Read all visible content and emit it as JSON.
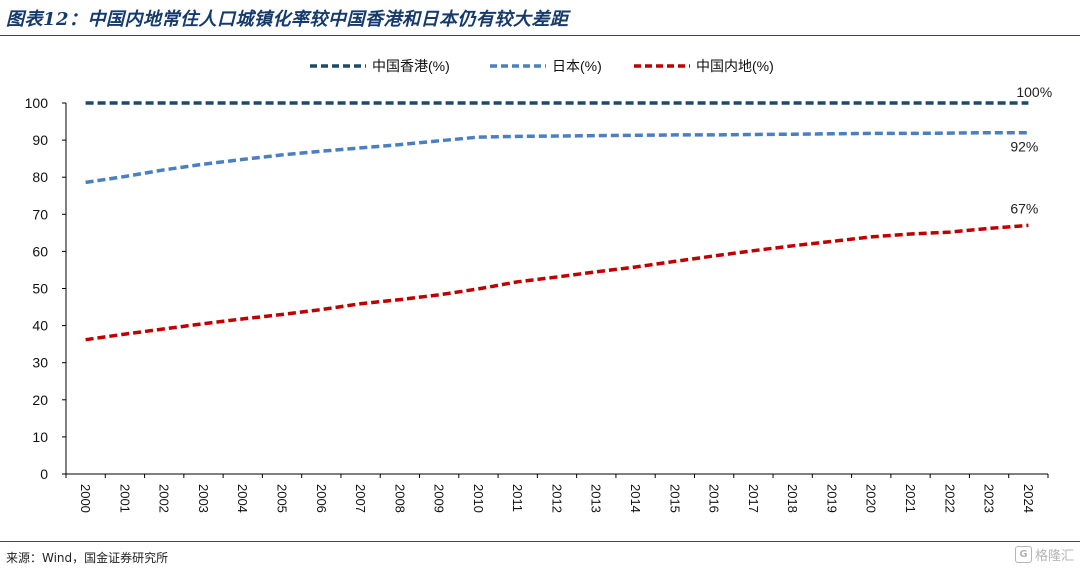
{
  "header": {
    "title": "图表12：中国内地常住人口城镇化率较中国香港和日本仍有较大差距"
  },
  "footer": {
    "source": "来源：Wind，国金证券研究所"
  },
  "watermark": {
    "logo": "G",
    "text": "格隆汇"
  },
  "chart_data": {
    "type": "line",
    "x": [
      2000,
      2001,
      2002,
      2003,
      2004,
      2005,
      2006,
      2007,
      2008,
      2009,
      2010,
      2011,
      2012,
      2013,
      2014,
      2015,
      2016,
      2017,
      2018,
      2019,
      2020,
      2021,
      2022,
      2023,
      2024
    ],
    "xticks": [
      "2000",
      "2001",
      "2002",
      "2003",
      "2004",
      "2005",
      "2006",
      "2007",
      "2008",
      "2009",
      "2010",
      "2011",
      "2012",
      "2013",
      "2014",
      "2015",
      "2016",
      "2017",
      "2018",
      "2019",
      "2020",
      "2021",
      "2022",
      "2023",
      "2024"
    ],
    "yticks": [
      "0",
      "10",
      "20",
      "30",
      "40",
      "50",
      "60",
      "70",
      "80",
      "90",
      "100"
    ],
    "ylim": [
      0,
      100
    ],
    "grid": false,
    "legend_position": "top-center",
    "series": [
      {
        "name": "中国香港(%)",
        "color": "#1b4a6b",
        "end_label": "100%",
        "values": [
          100,
          100,
          100,
          100,
          100,
          100,
          100,
          100,
          100,
          100,
          100,
          100,
          100,
          100,
          100,
          100,
          100,
          100,
          100,
          100,
          100,
          100,
          100,
          100,
          100
        ]
      },
      {
        "name": "日本(%)",
        "color": "#4a7fc1",
        "end_label": "92%",
        "values": [
          78.6,
          80.2,
          82.0,
          83.5,
          84.8,
          86.0,
          87.0,
          87.9,
          88.8,
          89.8,
          90.8,
          91.0,
          91.1,
          91.2,
          91.3,
          91.4,
          91.4,
          91.5,
          91.6,
          91.7,
          91.8,
          91.8,
          91.9,
          92.0,
          92.0
        ]
      },
      {
        "name": "中国内地(%)",
        "color": "#c00000",
        "end_label": "67%",
        "values": [
          36.2,
          37.7,
          39.1,
          40.5,
          41.8,
          43.0,
          44.3,
          45.9,
          47.0,
          48.3,
          49.9,
          51.8,
          53.1,
          54.5,
          55.8,
          57.3,
          58.8,
          60.2,
          61.5,
          62.7,
          63.9,
          64.7,
          65.2,
          66.2,
          67.0
        ]
      }
    ]
  }
}
